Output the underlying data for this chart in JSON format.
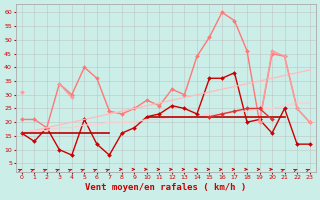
{
  "xlabel": "Vent moyen/en rafales ( km/h )",
  "background_color": "#cceee8",
  "grid_color": "#bbbbbb",
  "ylim": [
    2,
    63
  ],
  "yticks": [
    5,
    10,
    15,
    20,
    25,
    30,
    35,
    40,
    45,
    50,
    55,
    60
  ],
  "series": [
    {
      "y": [
        16,
        13,
        18,
        10,
        8,
        21,
        12,
        8,
        16,
        18,
        22,
        23,
        26,
        25,
        23,
        36,
        36,
        38,
        20,
        21,
        16,
        25,
        12,
        12
      ],
      "color": "#cc0000",
      "lw": 1.0,
      "marker": "D",
      "ms": 2.0
    },
    {
      "y": [
        21,
        21,
        18,
        34,
        30,
        40,
        36,
        24,
        23,
        25,
        28,
        26,
        32,
        30,
        44,
        51,
        60,
        57,
        46,
        20,
        45,
        44,
        25,
        20
      ],
      "color": "#ff7777",
      "lw": 1.0,
      "marker": "D",
      "ms": 2.0
    },
    {
      "y": [
        16,
        17,
        18,
        19,
        20,
        21,
        22,
        23,
        24,
        25,
        26,
        27,
        28,
        29,
        30,
        31,
        32,
        33,
        34,
        35,
        36,
        37,
        38,
        39
      ],
      "color": "#ffbbbb",
      "lw": 0.9,
      "marker": null,
      "ms": 0
    },
    {
      "y": [
        16,
        17,
        17,
        18,
        18,
        19,
        19,
        20,
        20,
        20,
        21,
        21,
        22,
        22,
        22,
        23,
        23,
        24,
        24,
        25,
        25,
        26,
        27,
        27
      ],
      "color": "#ffcccc",
      "lw": 0.9,
      "marker": null,
      "ms": 0
    },
    {
      "y": [
        31,
        null,
        null,
        34,
        29,
        null,
        null,
        null,
        null,
        null,
        null,
        null,
        null,
        null,
        null,
        null,
        null,
        null,
        null,
        null,
        null,
        null,
        null,
        null
      ],
      "color": "#ff9999",
      "lw": 1.0,
      "marker": "D",
      "ms": 2.0
    },
    {
      "y": [
        null,
        null,
        null,
        null,
        null,
        null,
        null,
        null,
        null,
        null,
        null,
        null,
        null,
        null,
        null,
        null,
        null,
        null,
        null,
        20,
        46,
        44,
        25,
        20
      ],
      "color": "#ff9999",
      "lw": 1.0,
      "marker": "D",
      "ms": 2.0
    },
    {
      "y": [
        16,
        16,
        16,
        16,
        16,
        16,
        16,
        16,
        null,
        null,
        null,
        null,
        null,
        null,
        null,
        null,
        null,
        null,
        null,
        null,
        null,
        null,
        null,
        null
      ],
      "color": "#bb0000",
      "lw": 1.2,
      "marker": null,
      "ms": 0
    },
    {
      "y": [
        null,
        null,
        null,
        null,
        null,
        null,
        null,
        null,
        null,
        null,
        22,
        22,
        22,
        22,
        22,
        22,
        22,
        22,
        22,
        22,
        22,
        22,
        null,
        null
      ],
      "color": "#bb0000",
      "lw": 1.2,
      "marker": null,
      "ms": 0
    },
    {
      "y": [
        null,
        null,
        null,
        null,
        null,
        null,
        null,
        null,
        null,
        null,
        null,
        null,
        null,
        null,
        null,
        22,
        23,
        24,
        25,
        25,
        21,
        null,
        null,
        null
      ],
      "color": "#dd3333",
      "lw": 1.0,
      "marker": "D",
      "ms": 2.0
    }
  ],
  "arrows_diagonal": [
    0,
    1,
    2,
    3,
    4,
    5,
    6,
    7,
    21,
    22,
    23
  ],
  "arrows_horizontal": [
    8,
    9,
    10,
    11,
    12,
    13,
    14,
    15,
    17,
    18,
    19,
    20
  ],
  "arrows_slight": [
    16
  ]
}
